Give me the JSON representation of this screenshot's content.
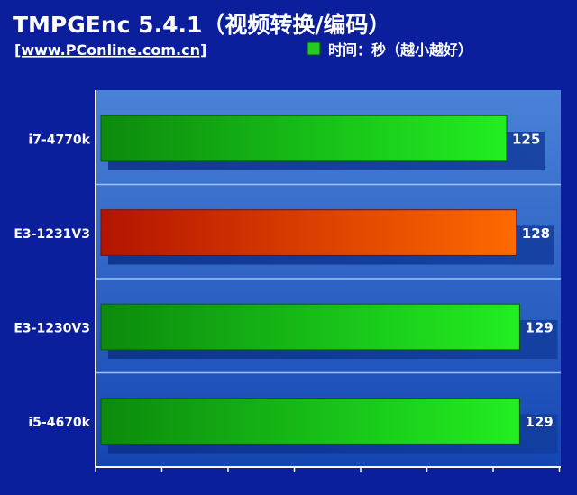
{
  "header": {
    "title": "TMPGEnc 5.4.1（视频转换/编码）",
    "source": "[www.PConline.com.cn]"
  },
  "chart_data": {
    "type": "bar",
    "orientation": "horizontal",
    "categories": [
      "i7-4770k",
      "E3-1231V3",
      "E3-1230V3",
      "i5-4670k"
    ],
    "values": [
      125,
      128,
      129,
      129
    ],
    "value_labels": [
      "125",
      "128",
      "129",
      "129"
    ],
    "series": [
      {
        "name": "时间：秒（越小越好）",
        "values": [
          125,
          128,
          129,
          129
        ]
      }
    ],
    "legend": {
      "label": "时间：秒（越小越好）",
      "position": "top-right"
    },
    "highlight_index": 1,
    "xlim": [
      0,
      130
    ],
    "grid": true,
    "colors": {
      "background": "#0b1f9c",
      "plot_top": "#4a82d8",
      "plot_bottom": "#1446b2",
      "bar_green_start": "#0c8a0c",
      "bar_green_end": "#22ee22",
      "bar_red_start": "#b31400",
      "bar_red_end": "#ff6a00",
      "legend_swatch": "#22cc22"
    }
  }
}
